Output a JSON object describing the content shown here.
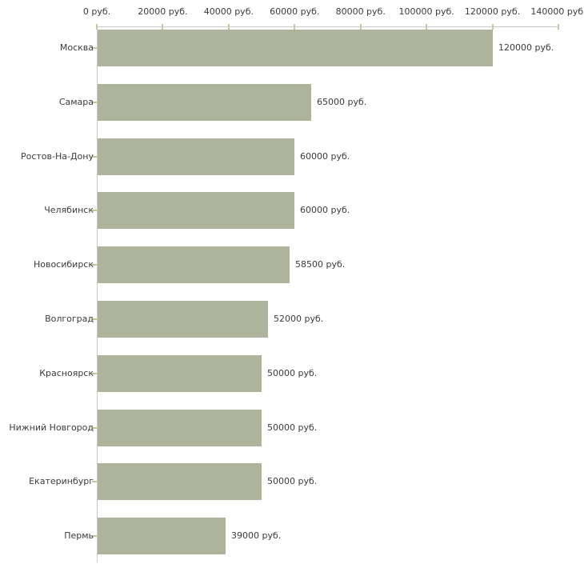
{
  "chart_data": {
    "type": "bar",
    "orientation": "horizontal",
    "title": "",
    "xlabel": "",
    "ylabel": "",
    "unit": "руб.",
    "categories": [
      "Москва",
      "Самара",
      "Ростов-На-Дону",
      "Челябинск",
      "Новосибирск",
      "Волгоград",
      "Красноярск",
      "Нижний Новгород",
      "Екатеринбург",
      "Пермь"
    ],
    "values": [
      120000,
      65000,
      60000,
      60000,
      58500,
      52000,
      50000,
      50000,
      50000,
      39000
    ],
    "value_labels": [
      "120000 руб.",
      "65000 руб.",
      "60000 руб.",
      "60000 руб.",
      "58500 руб.",
      "52000 руб.",
      "50000 руб.",
      "50000 руб.",
      "50000 руб.",
      "39000 руб."
    ],
    "xlim": [
      0,
      140000
    ],
    "x_ticks": [
      0,
      20000,
      40000,
      60000,
      80000,
      100000,
      120000,
      140000
    ],
    "x_tick_labels": [
      "0 руб.",
      "20000 руб.",
      "40000 руб.",
      "60000 руб.",
      "80000 руб.",
      "100000 руб.",
      "120000 руб.",
      "140000 руб."
    ],
    "grid": false,
    "legend": false,
    "colors": {
      "bar": "#aeb49b",
      "axis_line": "#c9c9c9",
      "tick": "#c3c78f",
      "text": "#3b3b3b"
    }
  }
}
